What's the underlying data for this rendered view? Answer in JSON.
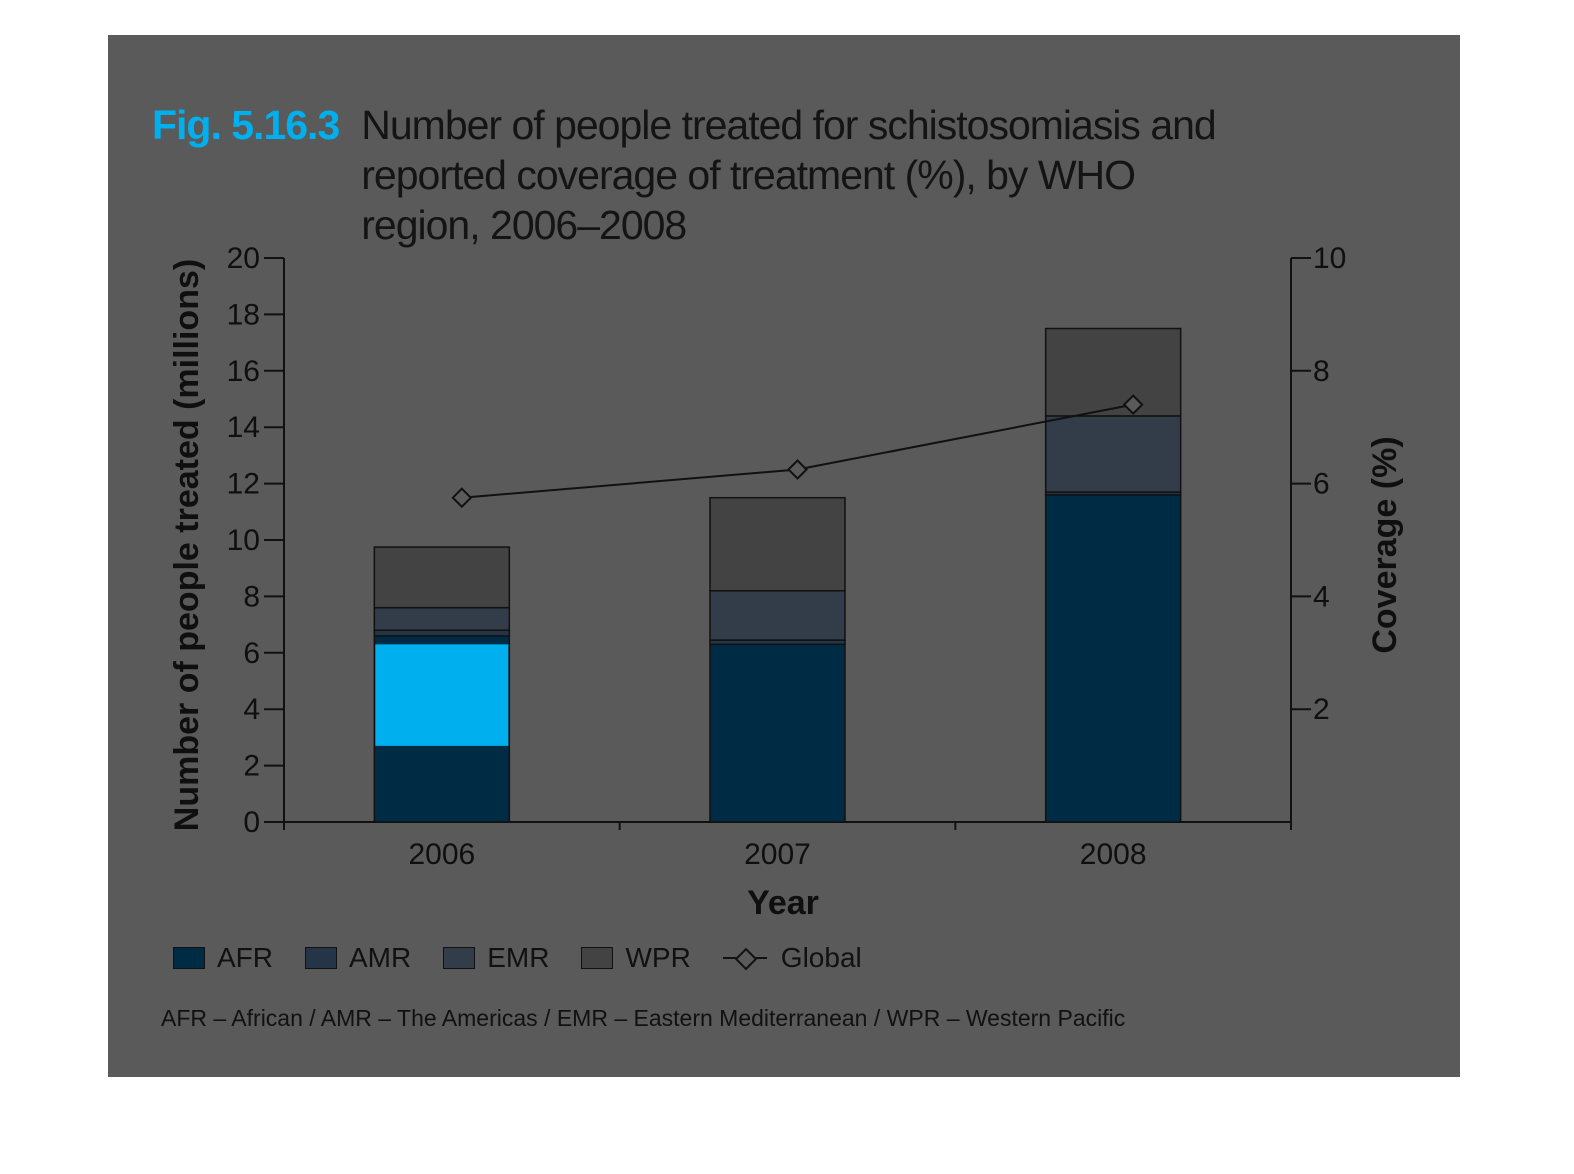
{
  "figure": {
    "label": "Fig. 5.16.3",
    "title": "Number of people treated for schistosomiasis and reported coverage of treatment (%), by WHO region, 2006–2008"
  },
  "legend": {
    "afr": "AFR",
    "amr": "AMR",
    "emr": "EMR",
    "wpr": "WPR",
    "global": "Global"
  },
  "footnote": "AFR – African / AMR – The Americas / EMR – Eastern Mediterranean / WPR – Western Pacific",
  "colors": {
    "background": "#5a5a5a",
    "afr": "#002b45",
    "amr": "#243548",
    "emr": "#333d4a",
    "wpr": "#434343",
    "highlight": "#00b0ee"
  },
  "chart_data": {
    "type": "bar",
    "stacked": true,
    "title": "",
    "categories": [
      "2006",
      "2007",
      "2008"
    ],
    "xlabel": "Year",
    "ylabel": "Number of people treated (millions)",
    "y2label": "Coverage (%)",
    "ylim": [
      0,
      20
    ],
    "y2lim": [
      0,
      10
    ],
    "yticks": [
      "0",
      "2",
      "4",
      "6",
      "8",
      "10",
      "12",
      "14",
      "16",
      "18",
      "20"
    ],
    "y2ticks": [
      "2",
      "4",
      "6",
      "8",
      "10"
    ],
    "series": [
      {
        "name": "AFR",
        "key": "afr",
        "values": [
          6.6,
          6.3,
          11.6
        ]
      },
      {
        "name": "AMR",
        "key": "amr",
        "values": [
          0.2,
          0.15,
          0.1
        ]
      },
      {
        "name": "EMR",
        "key": "emr",
        "values": [
          0.8,
          1.75,
          2.7
        ]
      },
      {
        "name": "WPR",
        "key": "wpr",
        "values": [
          2.15,
          3.3,
          3.1
        ]
      }
    ],
    "line_series": {
      "name": "Global",
      "axis": "right",
      "values": [
        5.75,
        6.25,
        7.4
      ]
    },
    "legend_position": "bottom",
    "grid": false
  }
}
